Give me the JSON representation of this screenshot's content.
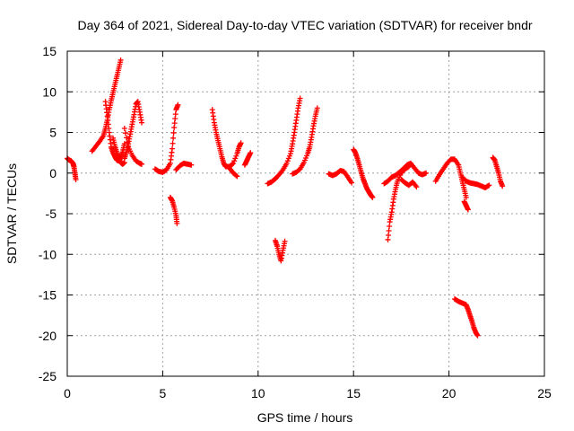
{
  "chart_data": {
    "type": "scatter",
    "title": "Day 364 of 2021, Sidereal Day-to-day VTEC variation (SDTVAR) for receiver bndr",
    "xlabel": "GPS time / hours",
    "ylabel": "SDTVAR / TECUs",
    "xlim": [
      0,
      25
    ],
    "ylim": [
      -25,
      15
    ],
    "x_ticks": [
      0,
      5,
      10,
      15,
      20,
      25
    ],
    "y_ticks": [
      -25,
      -20,
      -15,
      -10,
      -5,
      0,
      5,
      10,
      15
    ],
    "grid": true,
    "legend": "none",
    "marker": "plus",
    "color": "#ff0000",
    "series": [
      {
        "x": [
          0.0,
          0.1,
          0.2,
          0.3,
          0.35,
          0.4,
          0.45
        ],
        "y": [
          1.8,
          1.6,
          1.5,
          1.2,
          0.8,
          0.0,
          -0.8
        ]
      },
      {
        "x": [
          1.3,
          1.5,
          1.7,
          1.9,
          2.0,
          2.1,
          2.2,
          2.3,
          2.4,
          2.5,
          2.6,
          2.7,
          2.8
        ],
        "y": [
          2.7,
          3.3,
          3.9,
          4.6,
          5.5,
          6.5,
          7.8,
          8.9,
          9.9,
          10.9,
          11.9,
          12.9,
          13.9
        ]
      },
      {
        "x": [
          2.0,
          2.1,
          2.2,
          2.3,
          2.4,
          2.5,
          2.6,
          2.7,
          2.8,
          2.9,
          3.0
        ],
        "y": [
          8.8,
          7.0,
          5.0,
          3.2,
          2.5,
          2.0,
          1.6,
          1.5,
          1.9,
          2.6,
          3.6
        ]
      },
      {
        "x": [
          2.4,
          2.5,
          2.6,
          2.7,
          2.8,
          2.9,
          3.0
        ],
        "y": [
          4.3,
          3.3,
          2.5,
          1.8,
          1.3,
          1.1,
          1.3
        ]
      },
      {
        "x": [
          3.0,
          3.1,
          3.2,
          3.3,
          3.4,
          3.5,
          3.6,
          3.7,
          3.8,
          3.9
        ],
        "y": [
          1.8,
          2.6,
          3.6,
          4.8,
          6.0,
          7.2,
          8.5,
          8.8,
          7.5,
          6.2
        ]
      },
      {
        "x": [
          3.0,
          3.2,
          3.4,
          3.6,
          3.8,
          3.9
        ],
        "y": [
          5.5,
          3.2,
          2.2,
          1.5,
          1.2,
          1.1
        ]
      },
      {
        "x": [
          4.6,
          4.8,
          5.0,
          5.2,
          5.4,
          5.5,
          5.6,
          5.7,
          5.8
        ],
        "y": [
          0.5,
          0.2,
          0.1,
          0.4,
          1.2,
          3.0,
          5.6,
          7.8,
          8.4
        ]
      },
      {
        "x": [
          5.4,
          5.5,
          5.6,
          5.7,
          5.75
        ],
        "y": [
          -3.0,
          -3.4,
          -4.2,
          -5.2,
          -6.2
        ]
      },
      {
        "x": [
          5.7,
          5.9,
          6.1,
          6.3,
          6.5
        ],
        "y": [
          0.4,
          0.9,
          1.2,
          1.1,
          1.0
        ]
      },
      {
        "x": [
          7.6,
          7.7,
          7.8,
          7.9,
          8.0,
          8.1,
          8.2,
          8.3,
          8.5,
          8.7,
          8.9,
          9.0,
          9.1
        ],
        "y": [
          7.8,
          6.2,
          5.0,
          4.0,
          3.0,
          2.0,
          1.2,
          0.8,
          0.8,
          1.2,
          2.4,
          3.2,
          3.7
        ]
      },
      {
        "x": [
          8.5,
          8.7,
          8.9
        ],
        "y": [
          0.6,
          0.0,
          -0.4
        ]
      },
      {
        "x": [
          9.3,
          9.4,
          9.5,
          9.6
        ],
        "y": [
          1.0,
          1.5,
          2.0,
          2.5
        ]
      },
      {
        "x": [
          10.5,
          10.7,
          10.9,
          11.1,
          11.3,
          11.5,
          11.7,
          11.8,
          11.9,
          12.0,
          12.1,
          12.2
        ],
        "y": [
          -1.3,
          -1.1,
          -0.7,
          -0.2,
          0.4,
          1.2,
          2.4,
          3.6,
          5.0,
          6.5,
          8.0,
          9.2
        ]
      },
      {
        "x": [
          10.9,
          11.0,
          11.1,
          11.2,
          11.3,
          11.4
        ],
        "y": [
          -8.3,
          -9.0,
          -10.0,
          -10.8,
          -9.5,
          -8.4
        ]
      },
      {
        "x": [
          11.8,
          12.0,
          12.2,
          12.4,
          12.6,
          12.7,
          12.8,
          12.9,
          13.0,
          13.1
        ],
        "y": [
          -0.1,
          0.1,
          0.5,
          1.3,
          2.4,
          3.2,
          4.4,
          5.8,
          7.0,
          8.0
        ]
      },
      {
        "x": [
          13.7,
          13.9,
          14.1,
          14.3,
          14.5,
          14.7,
          14.9
        ],
        "y": [
          -0.1,
          -0.3,
          -0.1,
          0.3,
          0.2,
          -0.5,
          -1.2
        ]
      },
      {
        "x": [
          15.0,
          15.1,
          15.2,
          15.3,
          15.4,
          15.5,
          15.6,
          15.7,
          15.8,
          15.9,
          16.0
        ],
        "y": [
          2.9,
          2.5,
          1.8,
          1.0,
          0.1,
          -0.7,
          -1.3,
          -1.9,
          -2.3,
          -2.7,
          -3.0
        ]
      },
      {
        "x": [
          16.8,
          16.9,
          17.0,
          17.1,
          17.2,
          17.3,
          17.5,
          17.7,
          17.9
        ],
        "y": [
          -8.2,
          -6.0,
          -4.8,
          -3.2,
          -2.0,
          -1.0,
          0.0,
          0.5,
          0.8
        ]
      },
      {
        "x": [
          16.6,
          16.8,
          17.0,
          17.2,
          17.4,
          17.6,
          17.8,
          18.0,
          18.2,
          18.4,
          18.6,
          18.8
        ],
        "y": [
          -1.3,
          -1.0,
          -0.5,
          -0.3,
          0.1,
          0.5,
          1.0,
          1.2,
          0.6,
          0.0,
          -0.2,
          0.0
        ]
      },
      {
        "x": [
          17.5,
          17.7,
          17.9,
          18.1,
          18.3
        ],
        "y": [
          -0.8,
          -1.2,
          -1.5,
          -1.1,
          -1.7
        ]
      },
      {
        "x": [
          19.3,
          19.5,
          19.7,
          19.9,
          20.1,
          20.3,
          20.5,
          20.6,
          20.7,
          20.8,
          20.9
        ],
        "y": [
          -1.0,
          -0.2,
          0.5,
          1.2,
          1.7,
          1.7,
          1.0,
          0.0,
          -1.0,
          -2.0,
          -3.0
        ]
      },
      {
        "x": [
          20.8,
          20.9,
          21.0
        ],
        "y": [
          -3.5,
          -4.0,
          -4.5
        ]
      },
      {
        "x": [
          20.3,
          20.5,
          20.7,
          20.9,
          21.0,
          21.1,
          21.2,
          21.3,
          21.4,
          21.5
        ],
        "y": [
          -15.5,
          -15.8,
          -16.0,
          -16.2,
          -16.8,
          -17.5,
          -18.2,
          -19.0,
          -19.6,
          -20.0
        ]
      },
      {
        "x": [
          20.7,
          20.9,
          21.1,
          21.3,
          21.5,
          21.7,
          21.9,
          22.1
        ],
        "y": [
          -0.5,
          -1.0,
          -1.2,
          -1.3,
          -1.4,
          -1.6,
          -1.8,
          -1.5
        ]
      },
      {
        "x": [
          22.3,
          22.4,
          22.5,
          22.6,
          22.7,
          22.8
        ],
        "y": [
          1.9,
          1.6,
          0.8,
          0.0,
          -1.0,
          -1.6
        ]
      }
    ]
  }
}
